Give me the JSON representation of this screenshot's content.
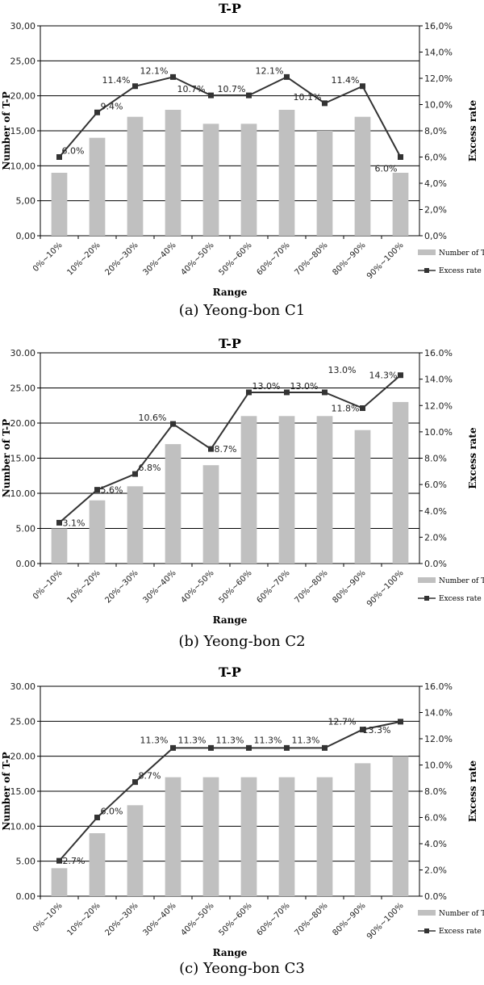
{
  "chart_data": [
    {
      "type": "bar",
      "title": "T-P",
      "xlabel": "Range",
      "ylabel": "Number of T-P",
      "y2label": "Excess rate",
      "caption": "(a)  Yeong-bon  C1",
      "categories": [
        "0%~10%",
        "10%~20%",
        "20%~30%",
        "30%~40%",
        "40%~50%",
        "50%~60%",
        "60%~70%",
        "70%~80%",
        "80%~90%",
        "90%~100%"
      ],
      "ylim": [
        0,
        30
      ],
      "y2lim": [
        0,
        16
      ],
      "yticks": [
        "0,00",
        "5,00",
        "10,00",
        "15,00",
        "20,00",
        "25,00",
        "30,00"
      ],
      "y2ticks": [
        "0,0%",
        "2,0%",
        "4,0%",
        "6,0%",
        "8,0%",
        "10,0%",
        "12,0%",
        "14,0%",
        "16,0%"
      ],
      "grid": true,
      "legend_placement": "bottom-right",
      "series": [
        {
          "name": "Number of T-P",
          "type": "bar",
          "axis": "left",
          "color": "#c0c0c0",
          "values": [
            9,
            14,
            17,
            18,
            16,
            16,
            18,
            15,
            17,
            9
          ]
        },
        {
          "name": "Excess rate",
          "type": "line",
          "axis": "right",
          "color": "#333333",
          "values": [
            6.0,
            9.4,
            11.4,
            12.1,
            10.7,
            10.7,
            12.1,
            10.1,
            11.4,
            6.0
          ],
          "labels": [
            "6.0%",
            "9.4%",
            "11.4%",
            "12.1%",
            "10.7%",
            "10.7%",
            "12.1%",
            "10.1%",
            "11.4%",
            "6.0%"
          ]
        }
      ]
    },
    {
      "type": "bar",
      "title": "T-P",
      "xlabel": "Range",
      "ylabel": "Number  of T-P",
      "y2label": "Excess rate",
      "caption": "(b)  Yeong-bon  C2",
      "categories": [
        "0%~10%",
        "10%~20%",
        "20%~30%",
        "30%~40%",
        "40%~50%",
        "50%~60%",
        "60%~70%",
        "70%~80%",
        "80%~90%",
        "90%~100%"
      ],
      "ylim": [
        0,
        30
      ],
      "y2lim": [
        0,
        16
      ],
      "yticks": [
        "0.00",
        "5.00",
        "10.00",
        "15.00",
        "20.00",
        "25.00",
        "30.00"
      ],
      "y2ticks": [
        "0.0%",
        "2.0%",
        "4.0%",
        "6.0%",
        "8.0%",
        "10.0%",
        "12.0%",
        "14.0%",
        "16.0%"
      ],
      "grid": true,
      "legend_placement": "bottom-right",
      "series": [
        {
          "name": "Number of T-P",
          "type": "bar",
          "axis": "left",
          "color": "#c0c0c0",
          "values": [
            5,
            9,
            11,
            17,
            14,
            21,
            21,
            21,
            19,
            23
          ]
        },
        {
          "name": "Excess rate",
          "type": "line",
          "axis": "right",
          "color": "#333333",
          "values": [
            3.1,
            5.6,
            6.8,
            10.6,
            8.7,
            13.0,
            13.0,
            13.0,
            11.8,
            14.3
          ],
          "labels": [
            "3.1%",
            "5.6%",
            "6.8%",
            "10.6%",
            "8.7%",
            "13.0%",
            "13.0%",
            "13.0%",
            "11.8%",
            "14.3%"
          ]
        }
      ]
    },
    {
      "type": "bar",
      "title": "T-P",
      "xlabel": "Range",
      "ylabel": "Number of T-P",
      "y2label": "Excess rate",
      "caption": "(c)  Yeong-bon  C3",
      "categories": [
        "0%~10%",
        "10%~20%",
        "20%~30%",
        "30%~40%",
        "40%~50%",
        "50%~60%",
        "60%~70%",
        "70%~80%",
        "80%~90%",
        "90%~100%"
      ],
      "ylim": [
        0,
        30
      ],
      "y2lim": [
        0,
        16
      ],
      "yticks": [
        "0.00",
        "5.00",
        "10.00",
        "15.00",
        "20.00",
        "25.00",
        "30.00"
      ],
      "y2ticks": [
        "0.0%",
        "2.0%",
        "4.0%",
        "6.0%",
        "8.0%",
        "10.0%",
        "12.0%",
        "14.0%",
        "16.0%"
      ],
      "grid": true,
      "legend_placement": "bottom-right",
      "series": [
        {
          "name": "Number of T-P",
          "type": "bar",
          "axis": "left",
          "color": "#c0c0c0",
          "values": [
            4,
            9,
            13,
            17,
            17,
            17,
            17,
            17,
            19,
            20
          ]
        },
        {
          "name": "Excess rate",
          "type": "line",
          "axis": "right",
          "color": "#333333",
          "values": [
            2.7,
            6.0,
            8.7,
            11.3,
            11.3,
            11.3,
            11.3,
            11.3,
            12.7,
            13.3
          ],
          "labels": [
            "2.7%",
            "6.0%",
            "8.7%",
            "11.3%",
            "11.3%",
            "11.3%",
            "11.3%",
            "11.3%",
            "12.7%",
            "13.3%"
          ]
        }
      ]
    }
  ]
}
